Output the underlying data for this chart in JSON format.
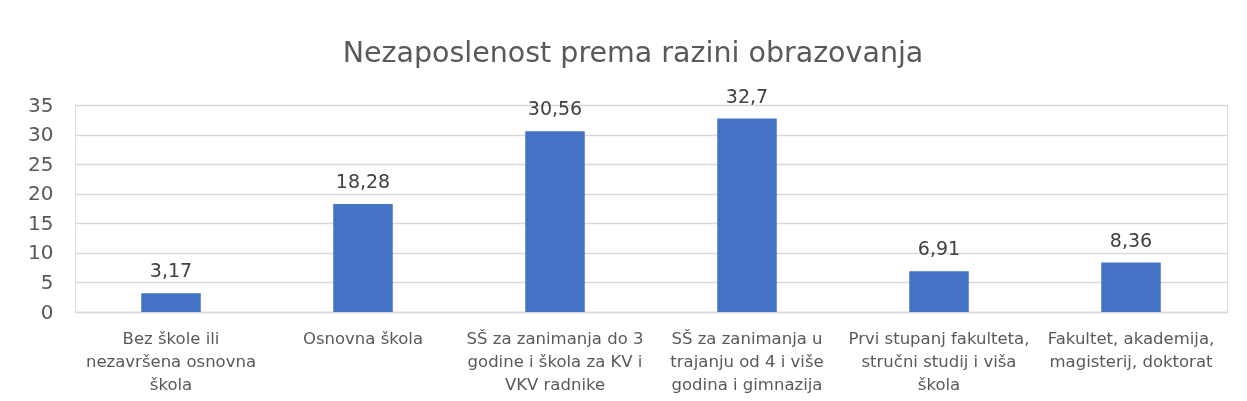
{
  "chart_data": {
    "type": "bar",
    "title": "Nezaposlenost prema razini obrazovanja",
    "categories": [
      "Bez škole ili nezavršena osnovna škola",
      "Osnovna škola",
      "SŠ za zanimanja do 3 godine i škola za KV i VKV radnike",
      "SŠ za zanimanja u trajanju od 4 i više godina i gimnazija",
      "Prvi stupanj fakulteta, stručni studij i viša škola",
      "Fakultet, akademija, magisterij, doktorat"
    ],
    "values": [
      3.17,
      18.28,
      30.56,
      32.7,
      6.91,
      8.36
    ],
    "value_labels": [
      "3,17",
      "18,28",
      "30,56",
      "32,7",
      "6,91",
      "8,36"
    ],
    "color": "#4472c4",
    "ylim": [
      0,
      35
    ],
    "yticks": [
      0,
      5,
      10,
      15,
      20,
      25,
      30,
      35
    ],
    "grid": "y"
  }
}
